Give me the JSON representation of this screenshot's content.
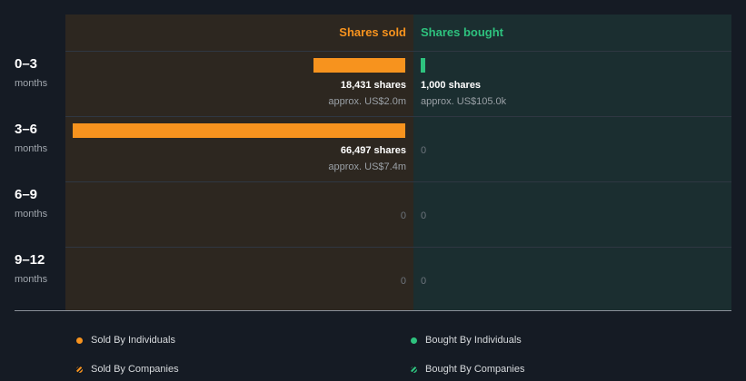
{
  "chart_data": {
    "type": "bar",
    "headers": {
      "sold": "Shares sold",
      "bought": "Shares bought"
    },
    "max_shares": 66497,
    "rows": [
      {
        "period": "0–3",
        "unit": "months",
        "sold": {
          "shares": 18431,
          "label": "18,431 shares",
          "approx": "approx. US$2.0m"
        },
        "bought": {
          "shares": 1000,
          "label": "1,000 shares",
          "approx": "approx. US$105.0k"
        }
      },
      {
        "period": "3–6",
        "unit": "months",
        "sold": {
          "shares": 66497,
          "label": "66,497 shares",
          "approx": "approx. US$7.4m"
        },
        "bought": {
          "shares": 0,
          "label": "0",
          "approx": ""
        }
      },
      {
        "period": "6–9",
        "unit": "months",
        "sold": {
          "shares": 0,
          "label": "0",
          "approx": ""
        },
        "bought": {
          "shares": 0,
          "label": "0",
          "approx": ""
        }
      },
      {
        "period": "9–12",
        "unit": "months",
        "sold": {
          "shares": 0,
          "label": "0",
          "approx": ""
        },
        "bought": {
          "shares": 0,
          "label": "0",
          "approx": ""
        }
      }
    ],
    "legend": [
      {
        "label": "Sold By Individuals",
        "color": "#f7931e",
        "style": "solid"
      },
      {
        "label": "Bought By Individuals",
        "color": "#2ec27e",
        "style": "solid"
      },
      {
        "label": "Sold By Companies",
        "color": "#f7931e",
        "style": "hatched"
      },
      {
        "label": "Bought By Companies",
        "color": "#2ec27e",
        "style": "hatched"
      }
    ]
  }
}
